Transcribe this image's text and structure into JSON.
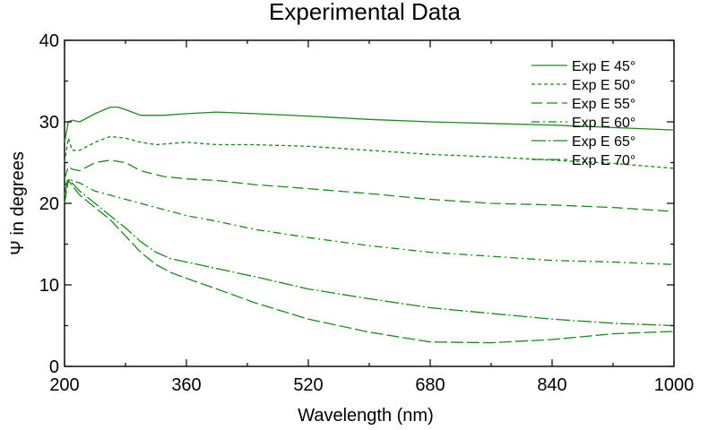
{
  "chart_data": {
    "type": "line",
    "title": "Experimental Data",
    "xlabel": "Wavelength (nm)",
    "ylabel": "Ψ in degrees",
    "xlim": [
      200,
      1000
    ],
    "ylim": [
      0,
      40
    ],
    "xticks": [
      200,
      360,
      520,
      680,
      840,
      1000
    ],
    "yticks": [
      0,
      10,
      20,
      30,
      40
    ],
    "grid": false,
    "legend_position": "top-right",
    "line_color": "#1a8a1a",
    "series": [
      {
        "name": "Exp E 45°",
        "dash": "solid",
        "x": [
          200,
          205,
          210,
          220,
          240,
          260,
          270,
          280,
          300,
          330,
          360,
          400,
          450,
          520,
          600,
          680,
          760,
          840,
          920,
          1000
        ],
        "y": [
          27.5,
          30.0,
          30.2,
          30.0,
          31.0,
          31.8,
          31.8,
          31.5,
          30.8,
          30.8,
          31.0,
          31.2,
          31.0,
          30.7,
          30.3,
          30.0,
          29.8,
          29.6,
          29.3,
          29.0
        ]
      },
      {
        "name": "Exp E 50°",
        "dash": "4,3",
        "x": [
          200,
          205,
          210,
          220,
          240,
          260,
          280,
          300,
          320,
          360,
          400,
          450,
          520,
          600,
          680,
          760,
          840,
          920,
          1000
        ],
        "y": [
          25.0,
          28.0,
          26.5,
          26.5,
          27.5,
          28.2,
          28.0,
          27.5,
          27.2,
          27.5,
          27.2,
          27.2,
          27.0,
          26.5,
          26.0,
          25.7,
          25.3,
          24.9,
          24.3
        ]
      },
      {
        "name": "Exp E 55°",
        "dash": "12,5",
        "x": [
          200,
          205,
          210,
          220,
          240,
          260,
          280,
          300,
          330,
          360,
          400,
          450,
          520,
          600,
          680,
          760,
          840,
          920,
          1000
        ],
        "y": [
          23.0,
          24.5,
          24.2,
          24.0,
          25.0,
          25.3,
          25.0,
          24.0,
          23.3,
          23.0,
          22.8,
          22.3,
          21.8,
          21.2,
          20.5,
          20.0,
          19.8,
          19.5,
          19.0
        ]
      },
      {
        "name": "Exp E 60°",
        "dash": "9,4,2,4",
        "x": [
          200,
          205,
          210,
          220,
          240,
          260,
          280,
          300,
          320,
          340,
          360,
          400,
          450,
          520,
          600,
          680,
          760,
          840,
          920,
          1000
        ],
        "y": [
          22.0,
          23.0,
          22.8,
          22.5,
          21.5,
          21.0,
          20.5,
          20.0,
          19.5,
          19.0,
          18.5,
          17.8,
          16.8,
          15.8,
          14.8,
          14.0,
          13.5,
          13.0,
          12.8,
          12.5
        ]
      },
      {
        "name": "Exp E 65°",
        "dash": "16,3,2,3",
        "x": [
          200,
          205,
          210,
          220,
          240,
          260,
          280,
          300,
          320,
          340,
          360,
          400,
          450,
          520,
          600,
          680,
          760,
          840,
          920,
          1000
        ],
        "y": [
          21.0,
          23.0,
          22.5,
          21.5,
          20.0,
          18.5,
          17.0,
          15.3,
          14.0,
          13.2,
          12.8,
          12.0,
          11.0,
          9.5,
          8.3,
          7.2,
          6.5,
          5.8,
          5.3,
          5.0
        ]
      },
      {
        "name": "Exp E 70°",
        "dash": "14,4",
        "x": [
          200,
          205,
          210,
          220,
          240,
          260,
          280,
          300,
          320,
          340,
          360,
          400,
          450,
          520,
          600,
          680,
          760,
          840,
          920,
          1000
        ],
        "y": [
          20.0,
          22.8,
          22.2,
          21.0,
          19.5,
          18.0,
          16.0,
          14.0,
          12.5,
          11.5,
          10.8,
          9.5,
          7.8,
          5.8,
          4.2,
          3.0,
          2.9,
          3.3,
          4.0,
          4.3
        ]
      }
    ]
  }
}
